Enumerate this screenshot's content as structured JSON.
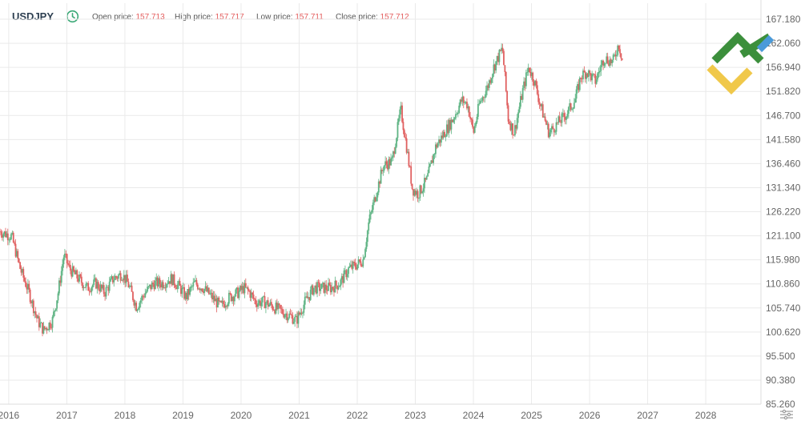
{
  "header": {
    "symbol": "USDJPY",
    "open_label": "Open price:",
    "open_value": "157.713",
    "high_label": "High price:",
    "high_value": "157.717",
    "low_label": "Low price:",
    "low_value": "157.711",
    "close_label": "Close price:",
    "close_value": "157.712"
  },
  "icons": {
    "clock": "clock-icon",
    "logo": "brand-logo",
    "settings": "chart-settings-icon"
  },
  "colors": {
    "up": "#5fb484",
    "down": "#e06060",
    "grid": "#eaeaea",
    "axis_text": "#666666",
    "clock": "#3aa876"
  },
  "chart_data": {
    "type": "candlestick",
    "x_ticks": [
      "2016",
      "2017",
      "2018",
      "2019",
      "2020",
      "2021",
      "2022",
      "2023",
      "2024",
      "2025",
      "2026",
      "2027",
      "2028"
    ],
    "y_ticks": [
      "167.180",
      "162.060",
      "156.940",
      "151.820",
      "146.700",
      "141.580",
      "136.460",
      "131.340",
      "126.220",
      "121.100",
      "115.980",
      "110.860",
      "105.740",
      "100.620",
      "95.500",
      "90.380",
      "85.260"
    ],
    "ylim": [
      85.26,
      167.18
    ],
    "xlim": [
      2015.85,
      2028.95
    ],
    "series": [
      {
        "values": [
          [
            2015.85,
            122
          ],
          [
            2016.05,
            121
          ],
          [
            2016.2,
            114
          ],
          [
            2016.35,
            109
          ],
          [
            2016.5,
            103
          ],
          [
            2016.6,
            101
          ],
          [
            2016.75,
            103
          ],
          [
            2016.85,
            109
          ],
          [
            2016.95,
            117
          ],
          [
            2017.05,
            114
          ],
          [
            2017.2,
            112
          ],
          [
            2017.35,
            110
          ],
          [
            2017.5,
            111
          ],
          [
            2017.65,
            109
          ],
          [
            2017.8,
            112
          ],
          [
            2017.95,
            113
          ],
          [
            2018.05,
            111
          ],
          [
            2018.2,
            106
          ],
          [
            2018.35,
            109
          ],
          [
            2018.5,
            111
          ],
          [
            2018.65,
            111
          ],
          [
            2018.8,
            112
          ],
          [
            2018.95,
            110
          ],
          [
            2019.05,
            108
          ],
          [
            2019.2,
            111
          ],
          [
            2019.35,
            110
          ],
          [
            2019.5,
            108
          ],
          [
            2019.65,
            106
          ],
          [
            2019.8,
            108
          ],
          [
            2019.95,
            109
          ],
          [
            2020.05,
            110
          ],
          [
            2020.15,
            109
          ],
          [
            2020.25,
            107
          ],
          [
            2020.4,
            107
          ],
          [
            2020.55,
            106
          ],
          [
            2020.7,
            105
          ],
          [
            2020.85,
            104
          ],
          [
            2020.95,
            103
          ],
          [
            2021.1,
            107
          ],
          [
            2021.25,
            110
          ],
          [
            2021.4,
            110
          ],
          [
            2021.55,
            110
          ],
          [
            2021.7,
            111
          ],
          [
            2021.85,
            114
          ],
          [
            2022.0,
            115
          ],
          [
            2022.1,
            116
          ],
          [
            2022.2,
            124
          ],
          [
            2022.3,
            129
          ],
          [
            2022.45,
            136
          ],
          [
            2022.6,
            137
          ],
          [
            2022.75,
            148
          ],
          [
            2022.85,
            140
          ],
          [
            2022.95,
            131
          ],
          [
            2023.05,
            130
          ],
          [
            2023.2,
            133
          ],
          [
            2023.35,
            140
          ],
          [
            2023.5,
            143
          ],
          [
            2023.65,
            146
          ],
          [
            2023.8,
            150
          ],
          [
            2023.9,
            149
          ],
          [
            2024.0,
            143
          ],
          [
            2024.1,
            149
          ],
          [
            2024.25,
            153
          ],
          [
            2024.35,
            157
          ],
          [
            2024.5,
            161
          ],
          [
            2024.6,
            146
          ],
          [
            2024.7,
            143
          ],
          [
            2024.85,
            152
          ],
          [
            2024.95,
            157
          ],
          [
            2025.05,
            154
          ],
          [
            2025.15,
            149
          ],
          [
            2025.3,
            143
          ],
          [
            2025.45,
            145
          ],
          [
            2025.6,
            147
          ],
          [
            2025.75,
            150
          ],
          [
            2025.85,
            155
          ],
          [
            2025.95,
            156
          ],
          [
            2026.1,
            154
          ],
          [
            2026.25,
            159
          ],
          [
            2026.4,
            158
          ],
          [
            2026.5,
            162
          ],
          [
            2026.58,
            157.7
          ]
        ]
      }
    ]
  }
}
